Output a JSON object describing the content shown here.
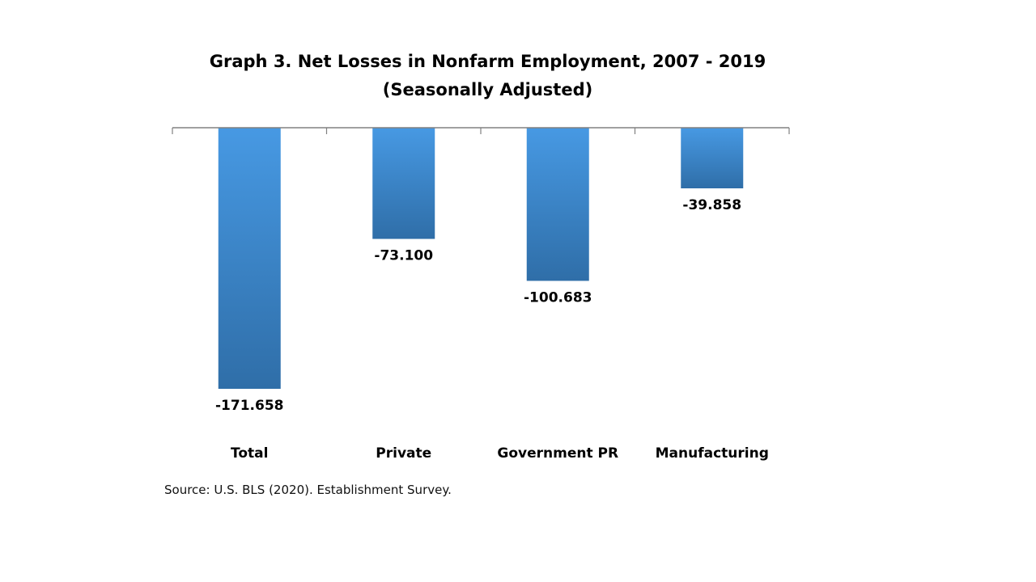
{
  "chart_data": {
    "type": "bar",
    "title": "Graph 3. Net Losses in Nonfarm Employment, 2007  - 2019",
    "subtitle": "(Seasonally Adjusted)",
    "categories": [
      "Total",
      "Private",
      "Government PR",
      "Manufacturing"
    ],
    "values": [
      -171.658,
      -73.1,
      -100.683,
      -39.858
    ],
    "data_labels": [
      "-171.658",
      "-73.100",
      "-100.683",
      "-39.858"
    ],
    "xlabel": "",
    "ylabel": "",
    "ylim": [
      -171.658,
      0
    ],
    "grid": false,
    "legend": "none",
    "colors": {
      "bar_top": "#4799e3",
      "bar_bottom": "#2f6ea8",
      "axis": "#808080"
    }
  },
  "source": "Source: U.S. BLS (2020). Establishment Survey."
}
